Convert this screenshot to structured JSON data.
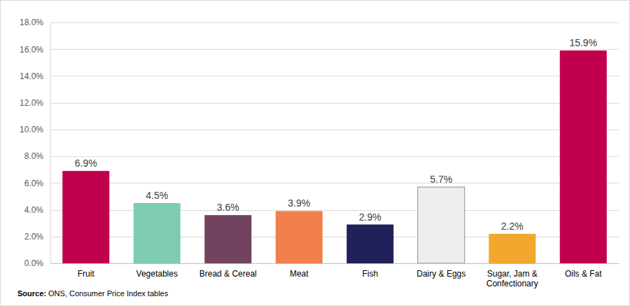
{
  "chart_data": {
    "type": "bar",
    "categories": [
      "Fruit",
      "Vegetables",
      "Bread & Cereal",
      "Meat",
      "Fish",
      "Dairy & Eggs",
      "Sugar, Jam & Confectionary",
      "Oils & Fat"
    ],
    "values": [
      6.9,
      4.5,
      3.6,
      3.9,
      2.9,
      5.7,
      2.2,
      15.9
    ],
    "value_labels": [
      "6.9%",
      "4.5%",
      "3.6%",
      "3.9%",
      "2.9%",
      "5.7%",
      "2.2%",
      "15.9%"
    ],
    "colors": [
      "#c0004e",
      "#7ecbb0",
      "#71435f",
      "#f07f4c",
      "#22205a",
      "#eeeeee",
      "#f2a72e",
      "#c0004e"
    ],
    "ylim": [
      0,
      18
    ],
    "yticks": [
      {
        "value": 0,
        "label": "0.0%"
      },
      {
        "value": 2,
        "label": "2.0%"
      },
      {
        "value": 4,
        "label": "4.0%"
      },
      {
        "value": 6,
        "label": "6.0%"
      },
      {
        "value": 8,
        "label": "8.0%"
      },
      {
        "value": 10,
        "label": "10.0%"
      },
      {
        "value": 12,
        "label": "12.0%"
      },
      {
        "value": 14,
        "label": "14.0%"
      },
      {
        "value": 16,
        "label": "16.0%"
      },
      {
        "value": 18,
        "label": "18.0%"
      }
    ],
    "grid": true,
    "data_labels": true,
    "source": "Source: ONS, Consumer Price Index tables"
  }
}
